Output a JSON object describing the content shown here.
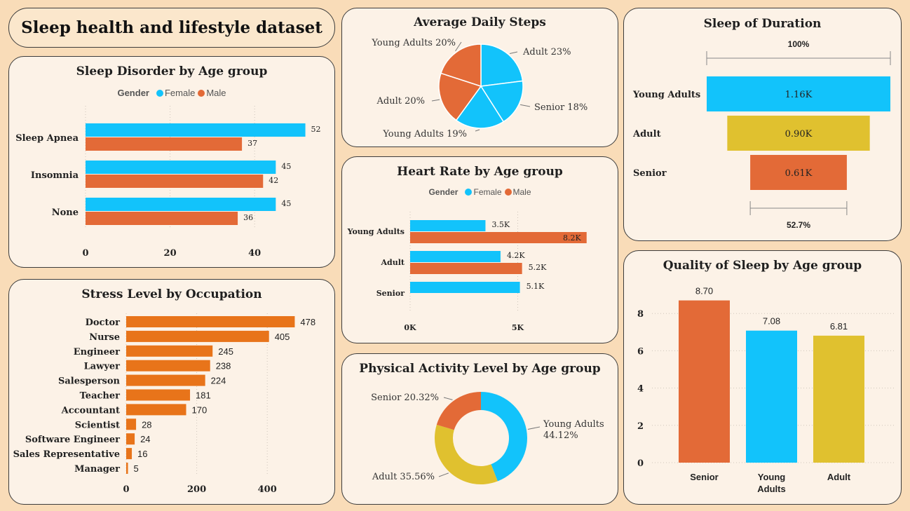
{
  "header": {
    "title": "Sleep health and lifestyle dataset"
  },
  "colors": {
    "female": "#12c3fb",
    "male": "#e36a37",
    "orange": "#e8741a",
    "yellow": "#e0c12f",
    "background": "#f9dcb8",
    "card": "#fcf2e7"
  },
  "sleep_disorder": {
    "title": "Sleep Disorder by Age group",
    "legend": {
      "title": "Gender",
      "female": "Female",
      "male": "Male"
    },
    "chart_data": {
      "type": "bar",
      "orientation": "horizontal",
      "categories": [
        "Sleep Apnea",
        "Insomnia",
        "None"
      ],
      "series": [
        {
          "name": "Female",
          "values": [
            52,
            45,
            45
          ]
        },
        {
          "name": "Male",
          "values": [
            37,
            42,
            36
          ]
        }
      ],
      "xticks": [
        "0",
        "20",
        "40"
      ],
      "xlim": [
        0,
        55
      ]
    }
  },
  "stress": {
    "title": "Stress Level by Occupation",
    "chart_data": {
      "type": "bar",
      "orientation": "horizontal",
      "categories": [
        "Doctor",
        "Nurse",
        "Engineer",
        "Lawyer",
        "Salesperson",
        "Teacher",
        "Accountant",
        "Scientist",
        "Software Engineer",
        "Sales Representative",
        "Manager"
      ],
      "values": [
        478,
        405,
        245,
        238,
        224,
        181,
        170,
        28,
        24,
        16,
        5
      ],
      "xticks": [
        "0",
        "200",
        "400"
      ],
      "xlim": [
        0,
        500
      ]
    }
  },
  "steps": {
    "title": "Average Daily Steps",
    "chart_data": {
      "type": "pie",
      "slices": [
        {
          "label": "Adult 23%",
          "value": 23,
          "color": "#12c3fb"
        },
        {
          "label": "Senior 18%",
          "value": 18,
          "color": "#12c3fb"
        },
        {
          "label": "Young Adults 19%",
          "value": 19,
          "color": "#12c3fb"
        },
        {
          "label": "Adult 20%",
          "value": 20,
          "color": "#e36a37"
        },
        {
          "label": "Young Adults 20%",
          "value": 20,
          "color": "#e36a37"
        }
      ]
    }
  },
  "heart": {
    "title": "Heart Rate by Age group",
    "legend": {
      "title": "Gender",
      "female": "Female",
      "male": "Male"
    },
    "chart_data": {
      "type": "bar",
      "orientation": "horizontal",
      "categories": [
        "Young Adults",
        "Adult",
        "Senior"
      ],
      "series": [
        {
          "name": "Female",
          "values": [
            3.5,
            4.2,
            5.1
          ],
          "labels": [
            "3.5K",
            "4.2K",
            "5.1K"
          ]
        },
        {
          "name": "Male",
          "values": [
            8.2,
            5.2,
            null
          ],
          "labels": [
            "8.2K",
            "5.2K",
            ""
          ]
        }
      ],
      "xticks": [
        "0K",
        "5K"
      ],
      "xlim": [
        0,
        8.2
      ]
    }
  },
  "activity": {
    "title": "Physical Activity Level by Age group",
    "chart_data": {
      "type": "pie",
      "donut": true,
      "slices": [
        {
          "label": "Young Adults 44.12%",
          "line1": "Young Adults",
          "line2": "44.12%",
          "value": 44.12,
          "color": "#12c3fb"
        },
        {
          "label": "Adult 35.56%",
          "line1": "Adult 35.56%",
          "line2": "",
          "value": 35.56,
          "color": "#e0c12f"
        },
        {
          "label": "Senior 20.32%",
          "line1": "Senior 20.32%",
          "line2": "",
          "value": 20.32,
          "color": "#e36a37"
        }
      ]
    }
  },
  "duration": {
    "title": "Sleep of Duration",
    "top_label": "100%",
    "bottom_label": "52.7%",
    "chart_data": {
      "type": "bar",
      "subtype": "funnel",
      "categories": [
        "Young Adults",
        "Adult",
        "Senior"
      ],
      "values": [
        1160,
        900,
        610
      ],
      "labels": [
        "1.16K",
        "0.90K",
        "0.61K"
      ],
      "colors": [
        "#12c3fb",
        "#e0c12f",
        "#e36a37"
      ]
    }
  },
  "quality": {
    "title": "Quality of Sleep by Age group",
    "chart_data": {
      "type": "bar",
      "categories": [
        "Senior",
        "Young Adults",
        "Adult"
      ],
      "category_lines": [
        [
          "Senior"
        ],
        [
          "Young",
          "Adults"
        ],
        [
          "Adult"
        ]
      ],
      "values": [
        8.7,
        7.08,
        6.81
      ],
      "labels": [
        "8.70",
        "7.08",
        "6.81"
      ],
      "colors": [
        "#e36a37",
        "#12c3fb",
        "#e0c12f"
      ],
      "yticks": [
        "0",
        "2",
        "4",
        "6",
        "8"
      ],
      "ylim": [
        0,
        8.9
      ]
    }
  }
}
